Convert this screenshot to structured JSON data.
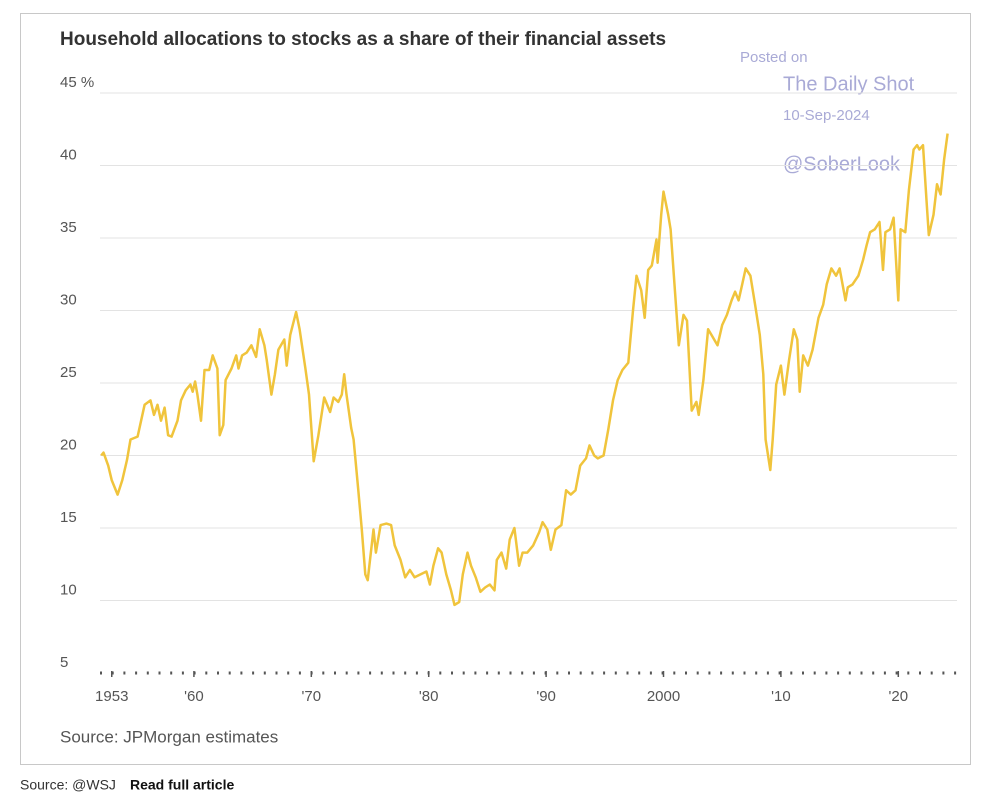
{
  "chart_data": {
    "type": "line",
    "title": "Household allocations to stocks as a share of their financial assets",
    "source": "Source: JPMorgan estimates",
    "watermark": [
      "Posted on",
      "The Daily Shot",
      "10-Sep-2024",
      "@SoberLook"
    ],
    "footer": {
      "source": "Source: @WSJ",
      "link": "Read full article"
    },
    "xlim": [
      1952,
      2025
    ],
    "xticks": [
      1953,
      {
        "value": 1960,
        "label": "'60"
      },
      {
        "value": 1970,
        "label": "'70"
      },
      {
        "value": 1980,
        "label": "'80"
      },
      {
        "value": 1990,
        "label": "'90"
      },
      2000,
      {
        "value": 2010,
        "label": "'10"
      },
      {
        "value": 2020,
        "label": "'20"
      }
    ],
    "ylim": [
      5,
      45
    ],
    "yticks": [
      5,
      10,
      15,
      20,
      25,
      30,
      35,
      40,
      {
        "value": 45,
        "label": "45 %"
      }
    ],
    "grid": true,
    "x": [
      1952.1,
      1952.3,
      1952.7,
      1953.0,
      1953.5,
      1953.9,
      1954.3,
      1954.6,
      1955.2,
      1955.5,
      1955.8,
      1956.3,
      1956.6,
      1956.9,
      1957.2,
      1957.5,
      1957.8,
      1958.1,
      1958.6,
      1958.9,
      1959.3,
      1959.7,
      1959.9,
      1960.1,
      1960.3,
      1960.6,
      1960.9,
      1961.3,
      1961.6,
      1962.0,
      1962.2,
      1962.5,
      1962.7,
      1963.2,
      1963.6,
      1963.8,
      1964.1,
      1964.5,
      1964.9,
      1965.3,
      1965.6,
      1966.0,
      1966.2,
      1966.6,
      1966.9,
      1967.2,
      1967.7,
      1967.9,
      1968.2,
      1968.7,
      1969.0,
      1969.5,
      1969.8,
      1970.2,
      1970.6,
      1971.1,
      1971.6,
      1971.9,
      1972.3,
      1972.6,
      1972.8,
      1973.0,
      1973.4,
      1973.6,
      1974.0,
      1974.3,
      1974.6,
      1974.8,
      1975.3,
      1975.5,
      1975.9,
      1976.4,
      1976.8,
      1977.1,
      1977.6,
      1978.0,
      1978.4,
      1978.8,
      1979.3,
      1979.8,
      1980.1,
      1980.4,
      1980.8,
      1981.1,
      1981.5,
      1981.9,
      1982.2,
      1982.6,
      1982.9,
      1983.3,
      1983.6,
      1984.0,
      1984.4,
      1984.8,
      1985.2,
      1985.6,
      1985.8,
      1986.2,
      1986.6,
      1986.9,
      1987.3,
      1987.7,
      1988.0,
      1988.4,
      1988.9,
      1989.4,
      1989.7,
      1990.1,
      1990.4,
      1990.8,
      1991.3,
      1991.7,
      1992.1,
      1992.5,
      1992.9,
      1993.4,
      1993.7,
      1994.1,
      1994.4,
      1994.9,
      1995.3,
      1995.7,
      1996.1,
      1996.5,
      1997.0,
      1997.4,
      1997.7,
      1998.1,
      1998.4,
      1998.7,
      1999.0,
      1999.4,
      1999.5,
      1999.8,
      2000.0,
      2000.4,
      2000.6,
      2001.0,
      2001.3,
      2001.7,
      2002.0,
      2002.4,
      2002.8,
      2003.0,
      2003.4,
      2003.8,
      2004.1,
      2004.6,
      2005.0,
      2005.4,
      2005.8,
      2006.1,
      2006.4,
      2006.7,
      2007.0,
      2007.4,
      2007.8,
      2008.2,
      2008.5,
      2008.7,
      2009.1,
      2009.3,
      2009.6,
      2010.0,
      2010.3,
      2010.7,
      2011.1,
      2011.4,
      2011.6,
      2011.9,
      2012.3,
      2012.7,
      2013.2,
      2013.6,
      2013.9,
      2014.3,
      2014.7,
      2015.0,
      2015.5,
      2015.7,
      2016.1,
      2016.6,
      2017.0,
      2017.3,
      2017.6,
      2018.0,
      2018.4,
      2018.7,
      2018.9,
      2019.3,
      2019.6,
      2020.0,
      2020.2,
      2020.6,
      2020.9,
      2021.3,
      2021.6,
      2021.8,
      2022.1,
      2022.4,
      2022.6,
      2023.0,
      2023.3,
      2023.6,
      2023.9,
      2024.2
    ],
    "series": [
      {
        "color": "#f0c43c",
        "values": [
          20.0,
          20.2,
          19.3,
          18.3,
          17.3,
          18.3,
          19.7,
          21.1,
          21.3,
          22.4,
          23.5,
          23.8,
          22.8,
          23.5,
          22.4,
          23.3,
          21.4,
          21.3,
          22.4,
          23.8,
          24.5,
          24.9,
          24.4,
          25.1,
          24.2,
          22.4,
          25.9,
          25.9,
          26.9,
          26.0,
          21.4,
          22.1,
          25.2,
          26.0,
          26.9,
          26.0,
          26.9,
          27.1,
          27.6,
          26.8,
          28.7,
          27.6,
          26.6,
          24.2,
          25.6,
          27.3,
          28.0,
          26.2,
          28.3,
          29.9,
          28.7,
          26.0,
          24.2,
          19.6,
          21.4,
          24.0,
          23.0,
          24.0,
          23.7,
          24.2,
          25.6,
          24.2,
          21.9,
          21.1,
          17.6,
          14.9,
          11.8,
          11.4,
          14.9,
          13.3,
          15.2,
          15.3,
          15.2,
          13.8,
          12.8,
          11.6,
          12.1,
          11.6,
          11.8,
          12.0,
          11.1,
          12.4,
          13.6,
          13.3,
          11.8,
          10.7,
          9.7,
          9.9,
          11.8,
          13.3,
          12.4,
          11.6,
          10.6,
          10.9,
          11.1,
          10.7,
          12.8,
          13.3,
          12.2,
          14.2,
          15.0,
          12.4,
          13.3,
          13.3,
          13.8,
          14.7,
          15.4,
          14.9,
          13.5,
          14.9,
          15.2,
          17.6,
          17.3,
          17.6,
          19.3,
          19.8,
          20.7,
          20.0,
          19.8,
          20.0,
          21.8,
          23.8,
          25.2,
          25.9,
          26.4,
          30.0,
          32.4,
          31.4,
          29.5,
          32.8,
          33.1,
          34.9,
          33.3,
          36.6,
          38.2,
          36.6,
          35.6,
          31.1,
          27.6,
          29.7,
          29.3,
          23.1,
          23.7,
          22.8,
          25.2,
          28.7,
          28.3,
          27.6,
          29.0,
          29.7,
          30.7,
          31.3,
          30.7,
          31.8,
          32.9,
          32.4,
          30.4,
          28.3,
          25.6,
          21.1,
          19.0,
          21.1,
          24.9,
          26.2,
          24.2,
          26.6,
          28.7,
          28.0,
          24.4,
          26.9,
          26.2,
          27.3,
          29.5,
          30.4,
          31.8,
          32.9,
          32.4,
          32.9,
          30.7,
          31.6,
          31.8,
          32.4,
          33.5,
          34.5,
          35.4,
          35.6,
          36.1,
          32.8,
          35.4,
          35.6,
          36.4,
          30.7,
          35.6,
          35.4,
          38.3,
          41.1,
          41.4,
          41.1,
          41.4,
          37.6,
          35.2,
          36.6,
          38.7,
          38.0,
          40.4,
          42.2
        ]
      }
    ]
  }
}
